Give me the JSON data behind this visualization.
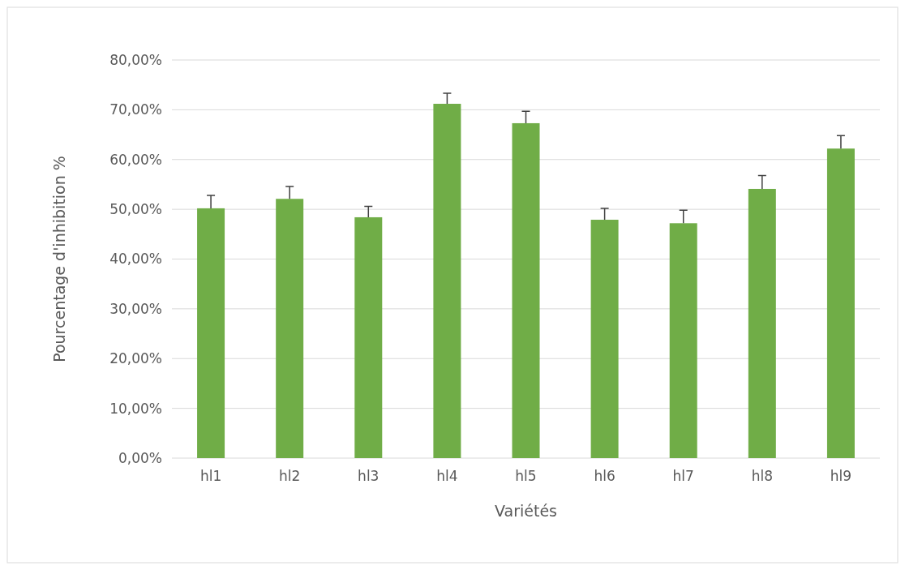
{
  "chart_data": {
    "type": "bar",
    "xlabel": "Variétés",
    "ylabel": "Pourcentage d'inhibition %",
    "categories": [
      "hl1",
      "hl2",
      "hl3",
      "hl4",
      "hl5",
      "hl6",
      "hl7",
      "hl8",
      "hl9"
    ],
    "values": [
      50.2,
      52.1,
      48.4,
      71.2,
      67.3,
      47.9,
      47.2,
      54.1,
      62.2
    ],
    "errors": [
      [
        50.2,
        52.8
      ],
      [
        52.1,
        54.6
      ],
      [
        48.4,
        50.6
      ],
      [
        71.2,
        73.3
      ],
      [
        67.3,
        69.7
      ],
      [
        47.9,
        50.2
      ],
      [
        47.2,
        49.8
      ],
      [
        54.1,
        56.8
      ],
      [
        62.2,
        64.8
      ]
    ],
    "color": "#70ad47",
    "ylim": [
      0,
      80
    ],
    "yticks": [
      {
        "value": 0,
        "label": "0,00%"
      },
      {
        "value": 10,
        "label": "10,00%"
      },
      {
        "value": 20,
        "label": "20,00%"
      },
      {
        "value": 30,
        "label": "30,00%"
      },
      {
        "value": 40,
        "label": "40,00%"
      },
      {
        "value": 50,
        "label": "50,00%"
      },
      {
        "value": 60,
        "label": "60,00%"
      },
      {
        "value": 70,
        "label": "70,00%"
      },
      {
        "value": 80,
        "label": "80,00%"
      }
    ],
    "grid": "y"
  }
}
